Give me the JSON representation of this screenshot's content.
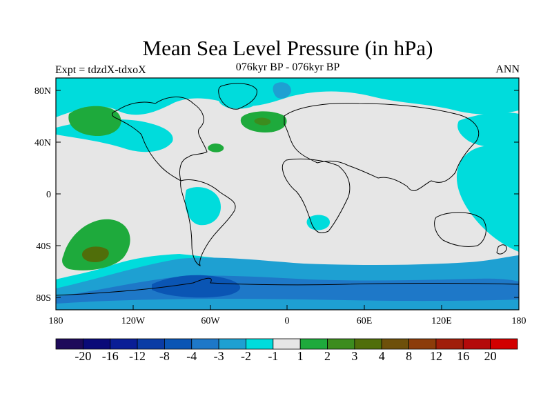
{
  "title": "Mean Sea Level Pressure (in hPa)",
  "expt_label": "Expt = tdzdX-tdxoX",
  "period_label": "076kyr BP - 076kyr BP",
  "season_label": "ANN",
  "lat_ticks": [
    "80N",
    "40N",
    "0",
    "40S",
    "80S"
  ],
  "lon_ticks": [
    "180",
    "120W",
    "60W",
    "0",
    "60E",
    "120E",
    "180"
  ],
  "colorbar": {
    "colors": [
      "#1e0a5a",
      "#0a0a78",
      "#0a1e96",
      "#0a3ca5",
      "#0a55b4",
      "#1e78c8",
      "#1ea0d2",
      "#00dcdc",
      "#e6e6e6",
      "#1eaa3c",
      "#3c8c1e",
      "#506e0a",
      "#6e500a",
      "#8c3c0a",
      "#a01e0a",
      "#b40a0a",
      "#d20000"
    ],
    "labels": [
      "-20",
      "-16",
      "-12",
      "-8",
      "-4",
      "-3",
      "-2",
      "-1",
      "1",
      "2",
      "3",
      "4",
      "8",
      "12",
      "16",
      "20"
    ]
  },
  "field_colors": {
    "neutral": "#e6e6e6",
    "neg1": "#00dcdc",
    "neg2": "#1ea0d2",
    "neg3": "#1e78c8",
    "neg4": "#0a55b4",
    "pos1": "#1eaa3c",
    "pos2": "#3c8c1e",
    "pos3": "#506e0a"
  }
}
